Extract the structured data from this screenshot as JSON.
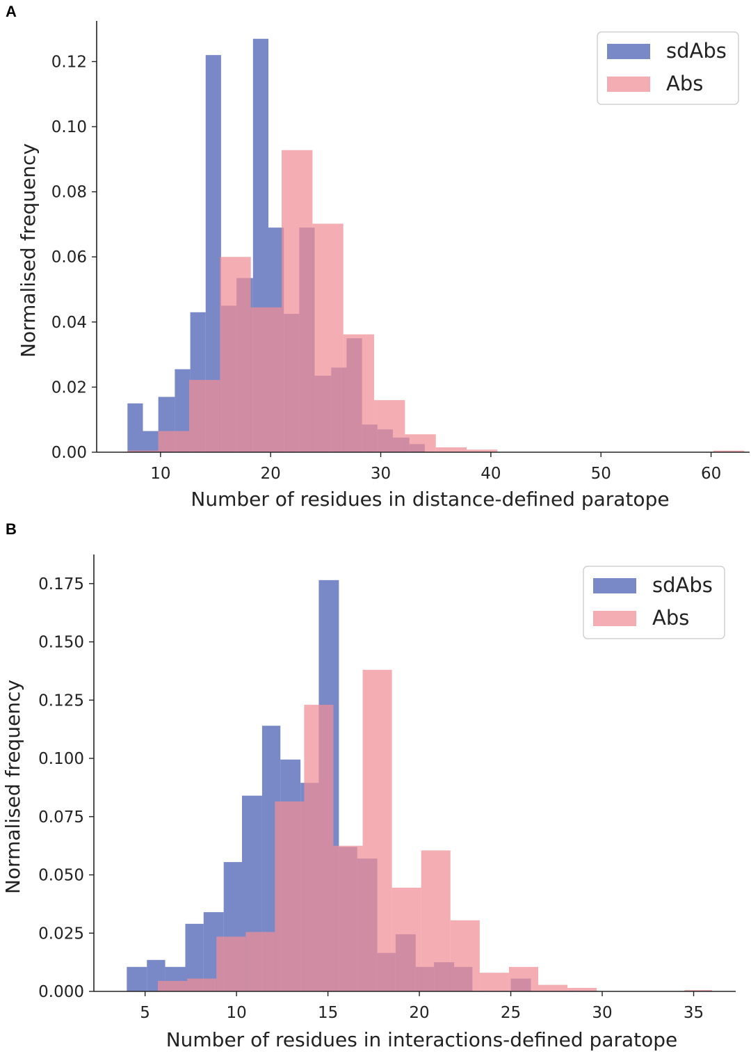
{
  "chart_data": [
    {
      "panel": "A",
      "type": "bar",
      "subtype": "overlapping-histogram",
      "xlabel": "Number of residues in distance-defined paratope",
      "ylabel": "Normalised frequency",
      "xlim": [
        4.2,
        63.5
      ],
      "ylim": [
        0,
        0.1325
      ],
      "xticks": [
        10,
        20,
        30,
        40,
        50,
        60
      ],
      "yticks": [
        0.0,
        0.02,
        0.04,
        0.06,
        0.08,
        0.1,
        0.12
      ],
      "ytick_labels": [
        "0.00",
        "0.02",
        "0.04",
        "0.06",
        "0.08",
        "0.10",
        "0.12"
      ],
      "legend": {
        "placement": "top-right"
      },
      "series": [
        {
          "name": "sdAbs",
          "color": "#7282c4",
          "bins": [
            7.0,
            8.4,
            9.8,
            11.3,
            12.7,
            14.1,
            15.5,
            16.9,
            18.4,
            19.8,
            21.2,
            22.6,
            24.0,
            25.5,
            26.9,
            28.3,
            29.7,
            31.1,
            32.6,
            34.0
          ],
          "values": [
            0.015,
            0.0065,
            0.017,
            0.0255,
            0.043,
            0.122,
            0.045,
            0.0535,
            0.127,
            0.069,
            0.0425,
            0.069,
            0.0235,
            0.026,
            0.035,
            0.0085,
            0.007,
            0.0045,
            0.0025
          ]
        },
        {
          "name": "Abs",
          "color": "#f08d95",
          "bins": [
            7.0,
            9.8,
            12.6,
            15.4,
            18.2,
            21.0,
            23.8,
            26.6,
            29.4,
            32.2,
            35.0,
            37.8,
            40.6,
            43.4,
            46.2,
            49.0,
            51.8,
            54.6,
            57.4,
            60.2,
            63.0
          ],
          "values": [
            0.0005,
            0.0065,
            0.0222,
            0.06,
            0.0445,
            0.0928,
            0.0702,
            0.0362,
            0.016,
            0.0055,
            0.0015,
            0.0008,
            0.0001,
            0.0,
            0.0,
            0.0,
            0.0,
            0.0,
            0.0,
            0.0005
          ]
        }
      ]
    },
    {
      "panel": "B",
      "type": "bar",
      "subtype": "overlapping-histogram",
      "xlabel": "Number of residues in interactions-defined paratope",
      "ylabel": "Normalised frequency",
      "xlim": [
        2.2,
        37.3
      ],
      "ylim": [
        0,
        0.1875
      ],
      "xticks": [
        5,
        10,
        15,
        20,
        25,
        30,
        35
      ],
      "yticks": [
        0.0,
        0.025,
        0.05,
        0.075,
        0.1,
        0.125,
        0.15,
        0.175
      ],
      "ytick_labels": [
        "0.000",
        "0.025",
        "0.050",
        "0.075",
        "0.100",
        "0.125",
        "0.150",
        "0.175"
      ],
      "legend": {
        "placement": "top-right"
      },
      "series": [
        {
          "name": "sdAbs",
          "color": "#7282c4",
          "bins": [
            4.0,
            5.1,
            6.1,
            7.2,
            8.2,
            9.3,
            10.3,
            11.4,
            12.4,
            13.5,
            14.5,
            15.6,
            16.6,
            17.7,
            18.7,
            19.8,
            20.8,
            21.9,
            22.9,
            24.0,
            25.0,
            26.1
          ],
          "values": [
            0.0105,
            0.0135,
            0.0105,
            0.029,
            0.034,
            0.0555,
            0.084,
            0.114,
            0.0995,
            0.0895,
            0.1765,
            0.062,
            0.057,
            0.0165,
            0.0245,
            0.0105,
            0.0125,
            0.0105,
            0.0,
            0.0,
            0.0055
          ]
        },
        {
          "name": "Abs",
          "color": "#f08d95",
          "bins": [
            5.7,
            7.3,
            8.9,
            10.5,
            12.1,
            13.7,
            15.3,
            16.9,
            18.5,
            20.1,
            21.7,
            23.3,
            24.9,
            26.5,
            28.1,
            29.7,
            31.3,
            32.9,
            34.5,
            36.0
          ],
          "values": [
            0.0045,
            0.0055,
            0.0235,
            0.0255,
            0.0815,
            0.123,
            0.0625,
            0.138,
            0.0445,
            0.0605,
            0.0305,
            0.008,
            0.0105,
            0.0028,
            0.0015,
            0.0,
            0.0,
            0.0,
            0.0006
          ]
        }
      ]
    }
  ]
}
